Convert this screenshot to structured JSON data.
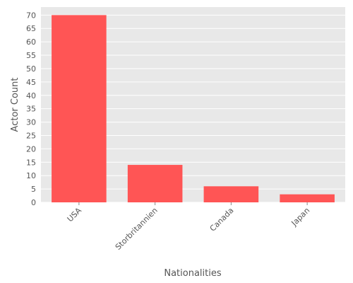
{
  "chart_data": {
    "type": "bar",
    "categories": [
      "USA",
      "Storbritannien",
      "Canada",
      "Japan"
    ],
    "values": [
      70,
      14,
      6,
      3
    ],
    "title": "",
    "xlabel": "Nationalities",
    "ylabel": "Actor Count",
    "ylim": [
      0,
      73
    ],
    "yticks": [
      0,
      5,
      10,
      15,
      20,
      25,
      30,
      35,
      40,
      45,
      50,
      55,
      60,
      65,
      70
    ],
    "grid": true,
    "legend": "none",
    "colors": {
      "bar": "#ff5555",
      "plot_background": "#e8e8e8",
      "grid": "#ffffff",
      "text": "#555555"
    }
  }
}
